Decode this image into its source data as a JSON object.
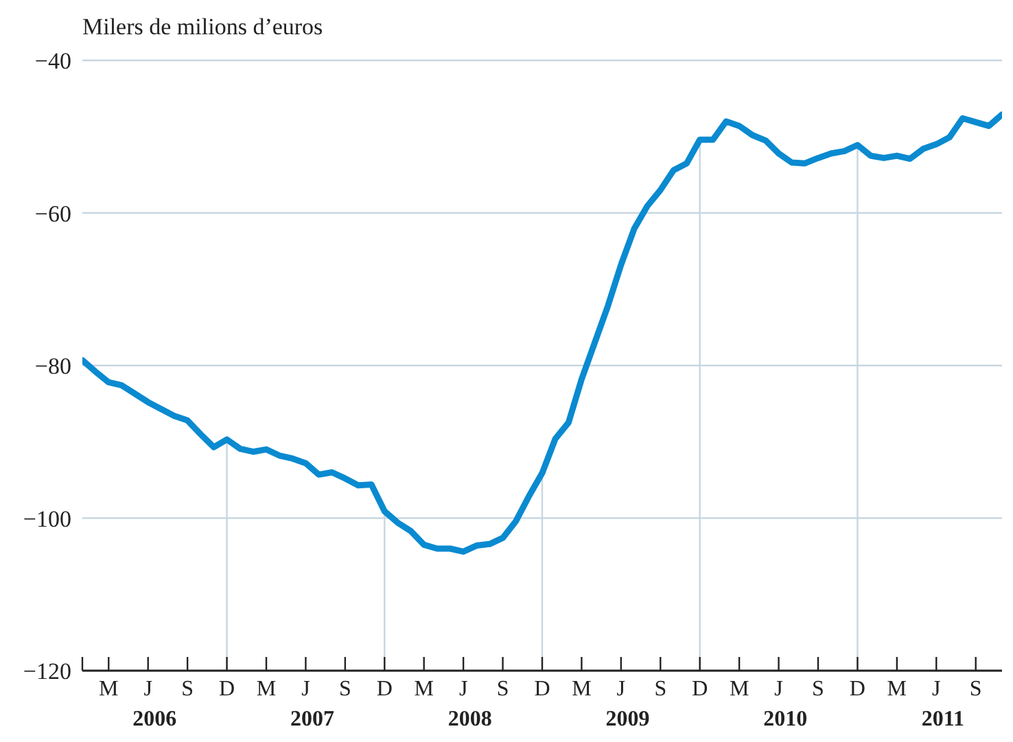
{
  "chart_data": {
    "type": "line",
    "ylabel": "Milers de milions d’euros",
    "categories": [
      null,
      null,
      "M",
      null,
      null,
      "J",
      null,
      null,
      "S",
      null,
      null,
      "D",
      null,
      null,
      "M",
      null,
      null,
      "J",
      null,
      null,
      "S",
      null,
      null,
      "D",
      null,
      null,
      "M",
      null,
      null,
      "J",
      null,
      null,
      "S",
      null,
      null,
      "D",
      null,
      null,
      "M",
      null,
      null,
      "J",
      null,
      null,
      "S",
      null,
      null,
      "D",
      null,
      null,
      "M",
      null,
      null,
      "J",
      null,
      null,
      "S",
      null,
      null,
      "D",
      null,
      null,
      "M",
      null,
      null,
      "J",
      null,
      null,
      "S",
      null,
      null
    ],
    "series": [
      {
        "color": "#0a8ad0",
        "values": [
          -79.3,
          -80.8,
          -82.2,
          -82.6,
          -83.7,
          -84.8,
          -85.7,
          -86.6,
          -87.2,
          -89.0,
          -90.7,
          -89.7,
          -90.9,
          -91.3,
          -91.0,
          -91.8,
          -92.2,
          -92.8,
          -94.3,
          -94.0,
          -94.8,
          -95.7,
          -95.6,
          -99.1,
          -100.6,
          -101.7,
          -103.5,
          -104.0,
          -104.0,
          -104.4,
          -103.6,
          -103.4,
          -102.6,
          -100.4,
          -97.1,
          -94.1,
          -89.6,
          -87.5,
          -81.8,
          -77.0,
          -72.2,
          -66.8,
          -62.1,
          -59.1,
          -57.0,
          -54.4,
          -53.5,
          -50.4,
          -50.4,
          -48.0,
          -48.6,
          -49.8,
          -50.5,
          -52.2,
          -53.4,
          -53.5,
          -52.8,
          -52.2,
          -51.9,
          -51.1,
          -52.5,
          -52.8,
          -52.5,
          -52.9,
          -51.6,
          -51.0,
          -50.1,
          -47.6,
          -48.1,
          -48.6,
          -47.1
        ]
      }
    ],
    "ylim": [
      -120,
      -40
    ],
    "yticks": [
      -120,
      -100,
      -80,
      -60,
      -40
    ],
    "grid": true,
    "marker": "none",
    "line_style": "solid",
    "annotations": [
      "2006",
      "2007",
      "2008",
      "2009",
      "2010",
      "2011"
    ]
  }
}
